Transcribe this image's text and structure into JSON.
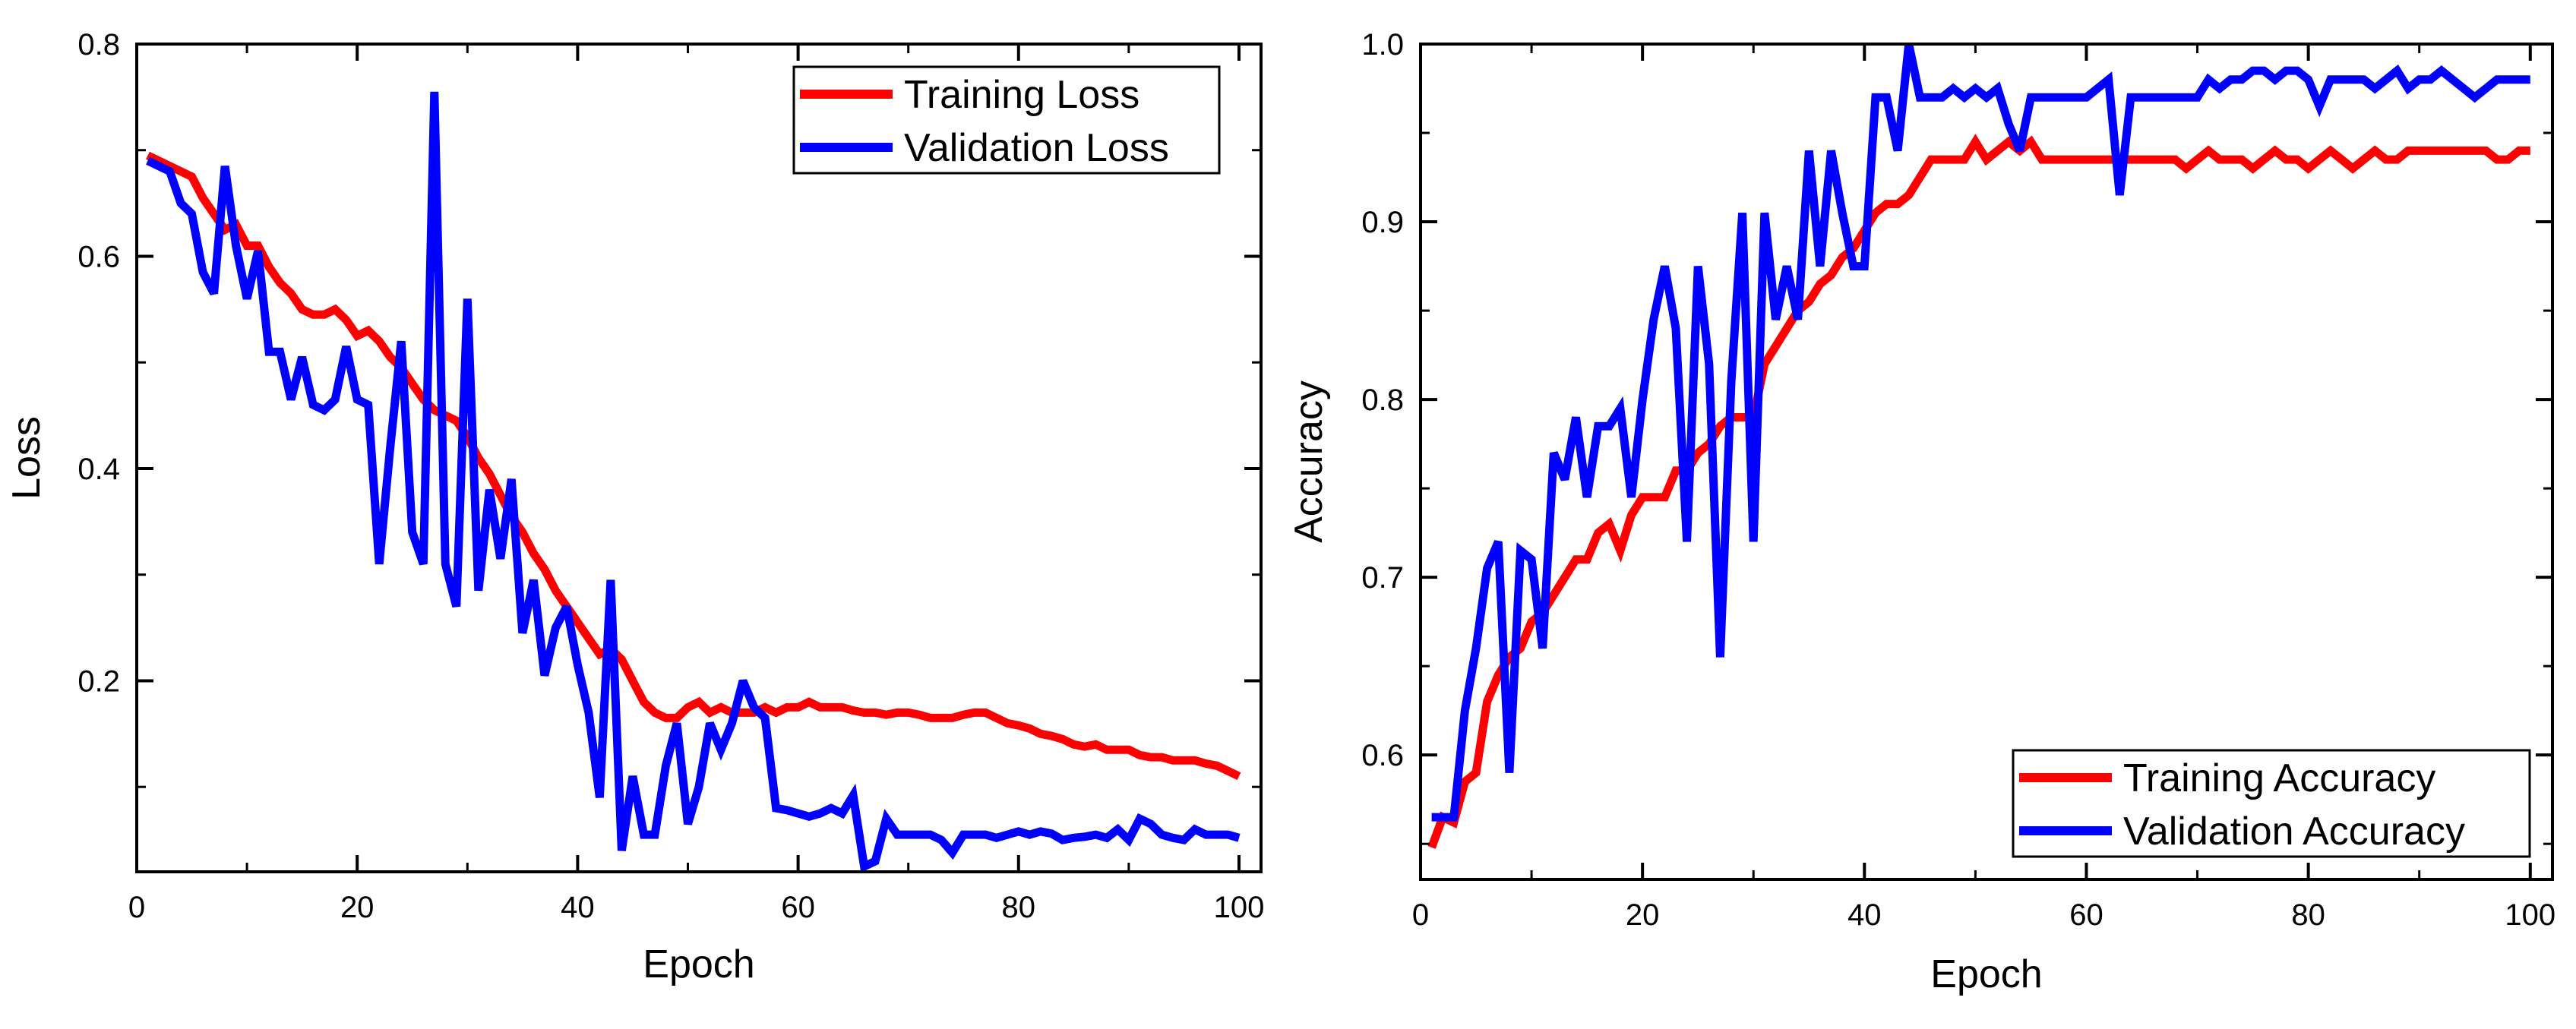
{
  "chart_data": [
    {
      "type": "line",
      "title": "",
      "xlabel": "Epoch",
      "ylabel": "Loss",
      "xlim": [
        0,
        102
      ],
      "ylim": [
        0.02,
        0.8
      ],
      "xticks": [
        "0",
        "20",
        "40",
        "60",
        "80",
        "100"
      ],
      "xtick_values": [
        0,
        20,
        40,
        60,
        80,
        100
      ],
      "yticks": [
        "0.2",
        "0.4",
        "0.6",
        "0.8"
      ],
      "ytick_values": [
        0.2,
        0.4,
        0.6,
        0.8
      ],
      "legend_position": "top-right",
      "series": [
        {
          "name": "Training Loss",
          "color": "#ff0000",
          "x": [
            1,
            2,
            3,
            4,
            5,
            6,
            7,
            8,
            9,
            10,
            11,
            12,
            13,
            14,
            15,
            16,
            17,
            18,
            19,
            20,
            21,
            22,
            23,
            24,
            25,
            26,
            27,
            28,
            29,
            30,
            31,
            32,
            33,
            34,
            35,
            36,
            37,
            38,
            39,
            40,
            41,
            42,
            43,
            44,
            45,
            46,
            47,
            48,
            49,
            50,
            51,
            52,
            53,
            54,
            55,
            56,
            57,
            58,
            59,
            60,
            61,
            62,
            63,
            64,
            65,
            66,
            67,
            68,
            69,
            70,
            71,
            72,
            73,
            74,
            75,
            76,
            77,
            78,
            79,
            80,
            81,
            82,
            83,
            84,
            85,
            86,
            87,
            88,
            89,
            90,
            91,
            92,
            93,
            94,
            95,
            96,
            97,
            98,
            99,
            100
          ],
          "values": [
            0.695,
            0.69,
            0.685,
            0.68,
            0.675,
            0.655,
            0.64,
            0.625,
            0.63,
            0.61,
            0.61,
            0.59,
            0.575,
            0.565,
            0.55,
            0.545,
            0.545,
            0.55,
            0.54,
            0.525,
            0.53,
            0.52,
            0.505,
            0.495,
            0.48,
            0.465,
            0.455,
            0.45,
            0.445,
            0.43,
            0.41,
            0.395,
            0.375,
            0.355,
            0.34,
            0.32,
            0.305,
            0.285,
            0.27,
            0.255,
            0.24,
            0.225,
            0.23,
            0.22,
            0.2,
            0.18,
            0.17,
            0.165,
            0.165,
            0.175,
            0.18,
            0.17,
            0.175,
            0.17,
            0.17,
            0.17,
            0.175,
            0.17,
            0.175,
            0.175,
            0.18,
            0.175,
            0.175,
            0.175,
            0.172,
            0.17,
            0.17,
            0.168,
            0.17,
            0.17,
            0.168,
            0.165,
            0.165,
            0.165,
            0.168,
            0.17,
            0.17,
            0.165,
            0.16,
            0.158,
            0.155,
            0.15,
            0.148,
            0.145,
            0.14,
            0.138,
            0.14,
            0.135,
            0.135,
            0.135,
            0.13,
            0.128,
            0.128,
            0.125,
            0.125,
            0.125,
            0.122,
            0.12,
            0.115,
            0.11
          ]
        },
        {
          "name": "Validation Loss",
          "color": "#0000ff",
          "x": [
            1,
            2,
            3,
            4,
            5,
            6,
            7,
            8,
            9,
            10,
            11,
            12,
            13,
            14,
            15,
            16,
            17,
            18,
            19,
            20,
            21,
            22,
            23,
            24,
            25,
            26,
            27,
            28,
            29,
            30,
            31,
            32,
            33,
            34,
            35,
            36,
            37,
            38,
            39,
            40,
            41,
            42,
            43,
            44,
            45,
            46,
            47,
            48,
            49,
            50,
            51,
            52,
            53,
            54,
            55,
            56,
            57,
            58,
            59,
            60,
            61,
            62,
            63,
            64,
            65,
            66,
            67,
            68,
            69,
            70,
            71,
            72,
            73,
            74,
            75,
            76,
            77,
            78,
            79,
            80,
            81,
            82,
            83,
            84,
            85,
            86,
            87,
            88,
            89,
            90,
            91,
            92,
            93,
            94,
            95,
            96,
            97,
            98,
            99,
            100
          ],
          "values": [
            0.69,
            0.685,
            0.68,
            0.65,
            0.64,
            0.585,
            0.565,
            0.685,
            0.61,
            0.56,
            0.605,
            0.51,
            0.51,
            0.465,
            0.505,
            0.46,
            0.455,
            0.465,
            0.515,
            0.465,
            0.46,
            0.31,
            0.42,
            0.52,
            0.34,
            0.31,
            0.755,
            0.31,
            0.27,
            0.56,
            0.285,
            0.38,
            0.315,
            0.39,
            0.245,
            0.295,
            0.205,
            0.25,
            0.27,
            0.215,
            0.17,
            0.09,
            0.295,
            0.04,
            0.11,
            0.055,
            0.055,
            0.12,
            0.16,
            0.065,
            0.1,
            0.16,
            0.135,
            0.16,
            0.2,
            0.175,
            0.165,
            0.08,
            0.078,
            0.075,
            0.072,
            0.075,
            0.08,
            0.075,
            0.092,
            0.025,
            0.03,
            0.07,
            0.055,
            0.055,
            0.055,
            0.055,
            0.05,
            0.038,
            0.055,
            0.055,
            0.055,
            0.052,
            0.055,
            0.058,
            0.055,
            0.058,
            0.056,
            0.05,
            0.052,
            0.053,
            0.055,
            0.052,
            0.06,
            0.05,
            0.07,
            0.065,
            0.055,
            0.052,
            0.05,
            0.06,
            0.055,
            0.055,
            0.055,
            0.052
          ]
        }
      ]
    },
    {
      "type": "line",
      "title": "",
      "xlabel": "Epoch",
      "ylabel": "Accuracy",
      "xlim": [
        0,
        102
      ],
      "ylim": [
        0.53,
        1.0
      ],
      "xticks": [
        "0",
        "20",
        "40",
        "60",
        "80",
        "100"
      ],
      "xtick_values": [
        0,
        20,
        40,
        60,
        80,
        100
      ],
      "yticks": [
        "0.6",
        "0.7",
        "0.8",
        "0.9",
        "1.0"
      ],
      "ytick_values": [
        0.6,
        0.7,
        0.8,
        0.9,
        1.0
      ],
      "legend_position": "bottom-right",
      "series": [
        {
          "name": "Training Accuracy",
          "color": "#ff0000",
          "x": [
            1,
            2,
            3,
            4,
            5,
            6,
            7,
            8,
            9,
            10,
            11,
            12,
            13,
            14,
            15,
            16,
            17,
            18,
            19,
            20,
            21,
            22,
            23,
            24,
            25,
            26,
            27,
            28,
            29,
            30,
            31,
            32,
            33,
            34,
            35,
            36,
            37,
            38,
            39,
            40,
            41,
            42,
            43,
            44,
            45,
            46,
            47,
            48,
            49,
            50,
            51,
            52,
            53,
            54,
            55,
            56,
            57,
            58,
            59,
            60,
            61,
            62,
            63,
            64,
            65,
            66,
            67,
            68,
            69,
            70,
            71,
            72,
            73,
            74,
            75,
            76,
            77,
            78,
            79,
            80,
            81,
            82,
            83,
            84,
            85,
            86,
            87,
            88,
            89,
            90,
            91,
            92,
            93,
            94,
            95,
            96,
            97,
            98,
            99,
            100
          ],
          "values": [
            0.548,
            0.565,
            0.562,
            0.585,
            0.59,
            0.63,
            0.645,
            0.655,
            0.66,
            0.675,
            0.68,
            0.69,
            0.7,
            0.71,
            0.71,
            0.725,
            0.73,
            0.715,
            0.735,
            0.745,
            0.745,
            0.745,
            0.76,
            0.76,
            0.77,
            0.775,
            0.785,
            0.79,
            0.79,
            0.79,
            0.82,
            0.83,
            0.84,
            0.85,
            0.855,
            0.865,
            0.87,
            0.88,
            0.885,
            0.895,
            0.905,
            0.91,
            0.91,
            0.915,
            0.925,
            0.935,
            0.935,
            0.935,
            0.935,
            0.945,
            0.935,
            0.94,
            0.945,
            0.94,
            0.945,
            0.935,
            0.935,
            0.935,
            0.935,
            0.935,
            0.935,
            0.935,
            0.935,
            0.935,
            0.935,
            0.935,
            0.935,
            0.935,
            0.93,
            0.935,
            0.94,
            0.935,
            0.935,
            0.935,
            0.93,
            0.935,
            0.94,
            0.935,
            0.935,
            0.93,
            0.935,
            0.94,
            0.935,
            0.93,
            0.935,
            0.94,
            0.935,
            0.935,
            0.94,
            0.94,
            0.94,
            0.94,
            0.94,
            0.94,
            0.94,
            0.94,
            0.935,
            0.935,
            0.94,
            0.94
          ]
        },
        {
          "name": "Validation Accuracy",
          "color": "#0000ff",
          "x": [
            1,
            2,
            3,
            4,
            5,
            6,
            7,
            8,
            9,
            10,
            11,
            12,
            13,
            14,
            15,
            16,
            17,
            18,
            19,
            20,
            21,
            22,
            23,
            24,
            25,
            26,
            27,
            28,
            29,
            30,
            31,
            32,
            33,
            34,
            35,
            36,
            37,
            38,
            39,
            40,
            41,
            42,
            43,
            44,
            45,
            46,
            47,
            48,
            49,
            50,
            51,
            52,
            53,
            54,
            55,
            56,
            57,
            58,
            59,
            60,
            61,
            62,
            63,
            64,
            65,
            66,
            67,
            68,
            69,
            70,
            71,
            72,
            73,
            74,
            75,
            76,
            77,
            78,
            79,
            80,
            81,
            82,
            83,
            84,
            85,
            86,
            87,
            88,
            89,
            90,
            91,
            92,
            93,
            94,
            95,
            96,
            97,
            98,
            99,
            100
          ],
          "values": [
            0.565,
            0.565,
            0.565,
            0.625,
            0.66,
            0.705,
            0.72,
            0.59,
            0.715,
            0.71,
            0.66,
            0.77,
            0.755,
            0.79,
            0.745,
            0.785,
            0.785,
            0.795,
            0.745,
            0.8,
            0.845,
            0.875,
            0.84,
            0.72,
            0.875,
            0.82,
            0.655,
            0.81,
            0.905,
            0.72,
            0.905,
            0.845,
            0.875,
            0.845,
            0.94,
            0.875,
            0.94,
            0.905,
            0.875,
            0.875,
            0.97,
            0.97,
            0.94,
            1.0,
            0.97,
            0.97,
            0.97,
            0.975,
            0.97,
            0.975,
            0.97,
            0.975,
            0.955,
            0.94,
            0.97,
            0.97,
            0.97,
            0.97,
            0.97,
            0.97,
            0.975,
            0.98,
            0.915,
            0.97,
            0.97,
            0.97,
            0.97,
            0.97,
            0.97,
            0.97,
            0.98,
            0.975,
            0.98,
            0.98,
            0.985,
            0.985,
            0.98,
            0.985,
            0.985,
            0.98,
            0.965,
            0.98,
            0.98,
            0.98,
            0.98,
            0.975,
            0.98,
            0.985,
            0.975,
            0.98,
            0.98,
            0.985,
            0.98,
            0.975,
            0.97,
            0.975,
            0.98,
            0.98,
            0.98,
            0.98
          ]
        }
      ]
    }
  ]
}
